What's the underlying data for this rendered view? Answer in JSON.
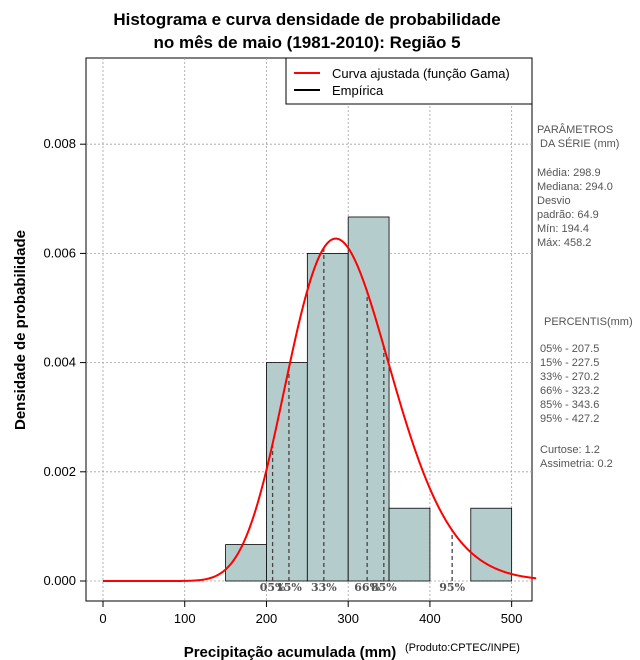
{
  "chart_data": {
    "type": "histogram",
    "title_line1": "Histograma e curva densidade de probabilidade",
    "title_line2": "no mês de maio (1981-2010): Região 5",
    "xlabel": "Precipitação acumulada (mm)",
    "ylabel": "Densidade de probabilidade",
    "credit": "(Produto:CPTEC/INPE)",
    "xlim": [
      -20,
      530
    ],
    "ylim": [
      -0.0004,
      0.0096
    ],
    "x_ticks": [
      0,
      100,
      200,
      300,
      400,
      500
    ],
    "x_tick_labels": [
      "0",
      "100",
      "200",
      "300",
      "400",
      "500"
    ],
    "y_ticks": [
      0.0,
      0.002,
      0.004,
      0.006,
      0.008
    ],
    "y_tick_labels": [
      "0.000",
      "0.002",
      "0.004",
      "0.006",
      "0.008"
    ],
    "grid": true,
    "bins": [
      {
        "start": 150,
        "end": 200,
        "density": 0.000667
      },
      {
        "start": 200,
        "end": 250,
        "density": 0.004
      },
      {
        "start": 250,
        "end": 300,
        "density": 0.006
      },
      {
        "start": 300,
        "end": 350,
        "density": 0.006667
      },
      {
        "start": 350,
        "end": 400,
        "density": 0.001333
      },
      {
        "start": 400,
        "end": 450,
        "density": 0.0
      },
      {
        "start": 450,
        "end": 500,
        "density": 0.001333
      }
    ],
    "gamma_fit": {
      "mean": 298.9,
      "sd": 64.9,
      "x_start": 0,
      "x_end": 530
    },
    "percentile_lines": [
      {
        "label": "05%",
        "value": 207.5
      },
      {
        "label": "15%",
        "value": 227.5
      },
      {
        "label": "33%",
        "value": 270.2
      },
      {
        "label": "66%",
        "value": 323.2
      },
      {
        "label": "85%",
        "value": 343.6
      },
      {
        "label": "95%",
        "value": 427.2
      }
    ],
    "legend": {
      "position": "top-right",
      "items": [
        {
          "label": "Curva ajustada (função Gama)",
          "color": "#ff0000"
        },
        {
          "label": "Empírica",
          "color": "#000000"
        }
      ]
    },
    "colors": {
      "bar_fill": "#b4cccc",
      "curve": "#ff0000",
      "grid": "#a0a0a0",
      "percentile": "#444444"
    }
  },
  "sidebar": {
    "params_title_1": "PARÂMETROS",
    "params_title_2": "DA SÉRIE (mm)",
    "media": "Média:  298.9",
    "mediana": "Mediana:  294.0",
    "desvio_1": "Desvio",
    "desvio_2": "padrão:  64.9",
    "min": "Mín:  194.4",
    "max": "Máx:  458.2",
    "percentis_title": "PERCENTIS(mm)",
    "p05": "05% -  207.5",
    "p15": "15% -  227.5",
    "p33": "33% -  270.2",
    "p66": "66% -  323.2",
    "p85": "85% -  343.6",
    "p95": "95% -  427.2",
    "curtose": "Curtose:  1.2",
    "assimetria": "Assimetria:  0.2"
  }
}
